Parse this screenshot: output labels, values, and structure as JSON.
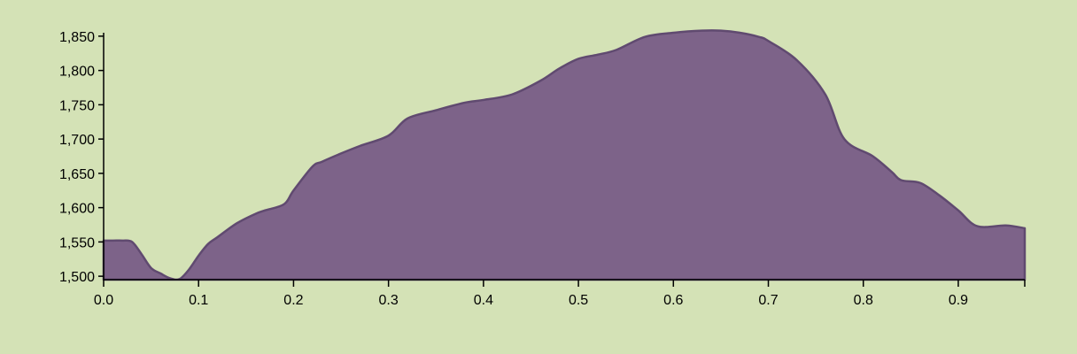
{
  "colors": {
    "background": "#d4e2b6",
    "area_fill": "#7d6389",
    "area_stroke": "#604a70",
    "axis": "#000000"
  },
  "chart_data": {
    "type": "area",
    "title": "",
    "xlabel": "",
    "ylabel": "",
    "xlim": [
      0,
      0.97
    ],
    "ylim": [
      1495,
      1855
    ],
    "grid": false,
    "legend": "none",
    "x_ticks": [
      0.0,
      0.1,
      0.2,
      0.3,
      0.4,
      0.5,
      0.6,
      0.7,
      0.8,
      0.9
    ],
    "x_tick_labels": [
      "0.0",
      "0.1",
      "0.2",
      "0.3",
      "0.4",
      "0.5",
      "0.6",
      "0.7",
      "0.8",
      "0.9"
    ],
    "y_ticks": [
      1500,
      1550,
      1600,
      1650,
      1700,
      1750,
      1800,
      1850
    ],
    "y_tick_labels": [
      "1,500",
      "1,550",
      "1,600",
      "1,650",
      "1,700",
      "1,750",
      "1,800",
      "1,850"
    ],
    "series": [
      {
        "x": [
          0.0,
          0.01,
          0.02,
          0.03,
          0.04,
          0.05,
          0.06,
          0.07,
          0.08,
          0.09,
          0.1,
          0.11,
          0.12,
          0.14,
          0.16,
          0.17,
          0.19,
          0.2,
          0.22,
          0.23,
          0.25,
          0.27,
          0.3,
          0.32,
          0.35,
          0.38,
          0.4,
          0.43,
          0.46,
          0.48,
          0.5,
          0.52,
          0.54,
          0.57,
          0.6,
          0.63,
          0.65,
          0.67,
          0.69,
          0.7,
          0.73,
          0.76,
          0.78,
          0.81,
          0.83,
          0.84,
          0.86,
          0.88,
          0.9,
          0.92,
          0.95,
          0.97
        ],
        "y": [
          1552,
          1552,
          1552,
          1550,
          1532,
          1512,
          1504,
          1497,
          1496,
          1510,
          1530,
          1547,
          1557,
          1577,
          1591,
          1596,
          1605,
          1625,
          1660,
          1667,
          1679,
          1690,
          1705,
          1730,
          1742,
          1753,
          1757,
          1765,
          1785,
          1803,
          1817,
          1823,
          1830,
          1849,
          1855,
          1858,
          1858,
          1855,
          1849,
          1843,
          1815,
          1765,
          1700,
          1675,
          1652,
          1640,
          1636,
          1618,
          1596,
          1573,
          1574,
          1570
        ]
      }
    ]
  }
}
